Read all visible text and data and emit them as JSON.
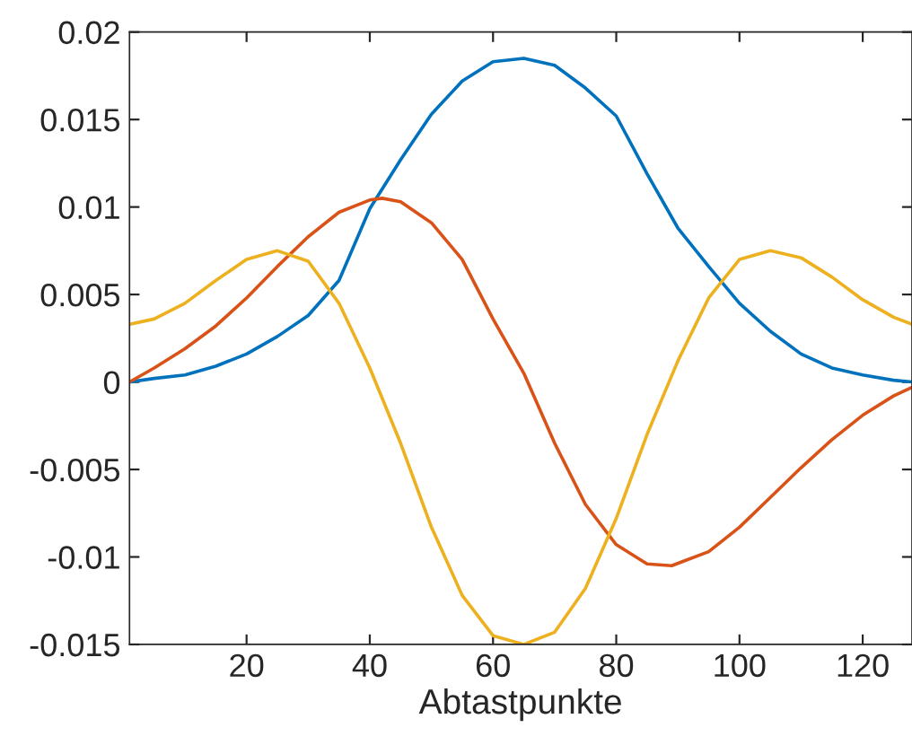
{
  "chart_data": {
    "type": "line",
    "xlabel": "Abtastpunkte",
    "xlim": [
      1,
      128
    ],
    "xticks": [
      20,
      40,
      60,
      80,
      100,
      120
    ],
    "ylim": [
      -0.015,
      0.02
    ],
    "yticks": [
      {
        "value": -0.015,
        "label": "-0.015"
      },
      {
        "value": -0.01,
        "label": "-0.01"
      },
      {
        "value": -0.005,
        "label": "-0.005"
      },
      0,
      {
        "value": 0.005,
        "label": "0.005"
      },
      {
        "value": 0.01,
        "label": "0.01"
      },
      {
        "value": 0.015,
        "label": "0.015"
      },
      {
        "value": 0.02,
        "label": "0.02"
      }
    ],
    "grid": false,
    "legend": false,
    "marker": "none",
    "line_style": "solid",
    "series": [
      {
        "color": "#0072bd",
        "x": [
          1,
          5,
          10,
          15,
          20,
          25,
          30,
          35,
          40,
          45,
          50,
          55,
          60,
          65,
          70,
          75,
          80,
          85,
          90,
          95,
          100,
          105,
          110,
          115,
          120,
          125,
          128
        ],
        "values": [
          0.0,
          0.0002,
          0.0004,
          0.0009,
          0.0016,
          0.0026,
          0.0038,
          0.0058,
          0.0099,
          0.0127,
          0.0153,
          0.0172,
          0.0183,
          0.0185,
          0.0181,
          0.0168,
          0.0152,
          0.0119,
          0.0088,
          0.0066,
          0.0045,
          0.0029,
          0.0016,
          0.0008,
          0.0004,
          0.0001,
          0.0
        ]
      },
      {
        "color": "#d95319",
        "x": [
          1,
          5,
          10,
          15,
          20,
          25,
          30,
          35,
          40,
          42,
          45,
          50,
          55,
          60,
          65,
          70,
          75,
          80,
          85,
          89,
          95,
          100,
          105,
          110,
          115,
          120,
          125,
          128
        ],
        "values": [
          0.0,
          0.0008,
          0.0019,
          0.0032,
          0.0048,
          0.0066,
          0.0083,
          0.0097,
          0.0104,
          0.0105,
          0.0103,
          0.0091,
          0.007,
          0.0036,
          0.0005,
          -0.0035,
          -0.007,
          -0.0093,
          -0.0104,
          -0.0105,
          -0.0097,
          -0.0083,
          -0.0066,
          -0.0049,
          -0.0033,
          -0.0019,
          -0.0008,
          -0.0003
        ]
      },
      {
        "color": "#edb120",
        "x": [
          1,
          5,
          10,
          15,
          20,
          25,
          30,
          35,
          40,
          45,
          50,
          55,
          60,
          65,
          70,
          75,
          80,
          85,
          90,
          95,
          100,
          105,
          110,
          115,
          120,
          125,
          128
        ],
        "values": [
          0.0033,
          0.0036,
          0.0045,
          0.0058,
          0.007,
          0.0075,
          0.0069,
          0.0045,
          0.0008,
          -0.0035,
          -0.0083,
          -0.0122,
          -0.0145,
          -0.015,
          -0.0143,
          -0.0118,
          -0.0078,
          -0.003,
          0.0012,
          0.0048,
          0.007,
          0.0075,
          0.0071,
          0.006,
          0.0047,
          0.0037,
          0.0033
        ]
      }
    ]
  }
}
